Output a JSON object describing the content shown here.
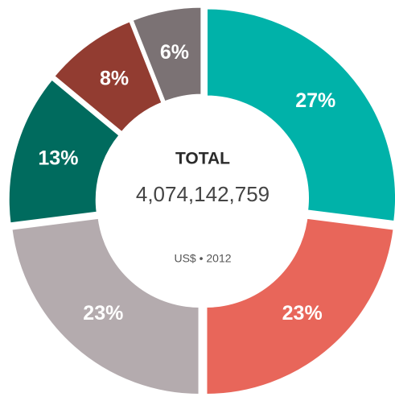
{
  "chart_data": {
    "type": "donut",
    "values": [
      27,
      23,
      23,
      13,
      8,
      6
    ],
    "value_labels": [
      "27%",
      "23%",
      "23%",
      "13%",
      "8%",
      "6%"
    ],
    "colors": [
      "#00b2a9",
      "#e8665a",
      "#b4abae",
      "#006b5e",
      "#923c31",
      "#7b7274"
    ],
    "center_title": "TOTAL",
    "center_value": "4,074,142,759",
    "center_note": "US$ • 2012"
  }
}
